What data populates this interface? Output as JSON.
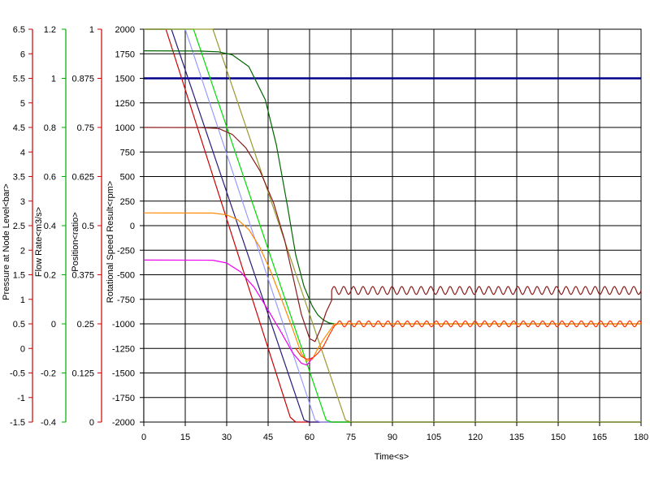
{
  "chart_data": {
    "type": "line",
    "xlabel": "Time<s>",
    "xlim": [
      0,
      180
    ],
    "x_ticks": [
      "0",
      "15",
      "30",
      "45",
      "60",
      "75",
      "90",
      "105",
      "120",
      "135",
      "150",
      "165",
      "180"
    ],
    "grid": true,
    "axes": [
      {
        "id": "pressure",
        "label": "Pressure at Node Level<bar>",
        "color": "#cc0000",
        "ylim": [
          -1.5,
          6.5
        ],
        "ticks": [
          "6.5",
          "6",
          "5.5",
          "5",
          "4.5",
          "4",
          "3.5",
          "3",
          "2.5",
          "2",
          "1.5",
          "1",
          "0.5",
          "0",
          "-0.5",
          "-1",
          "-1.5"
        ]
      },
      {
        "id": "flow",
        "label": "Flow Rate<m3/s>",
        "color": "#00aa00",
        "ylim": [
          -0.4,
          1.2
        ],
        "ticks": [
          "1.2",
          "1",
          "0.8",
          "0.6",
          "0.4",
          "0.2",
          "0",
          "-0.2",
          "-0.4"
        ]
      },
      {
        "id": "position",
        "label": "Position<ratio>",
        "color": "#cc0000",
        "ylim": [
          0,
          1
        ],
        "ticks": [
          "1",
          "0.875",
          "0.75",
          "0.625",
          "0.5",
          "0.375",
          "0.25",
          "0.125",
          "0"
        ]
      },
      {
        "id": "speed",
        "label": "Rotational Speed Result<rpm>",
        "color": "#000000",
        "ylim": [
          -2000,
          2000
        ],
        "ticks": [
          "2000",
          "1750",
          "1500",
          "1250",
          "1000",
          "750",
          "500",
          "250",
          "0",
          "-250",
          "-500",
          "-750",
          "-1000",
          "-1250",
          "-1500",
          "-1750",
          "-2000"
        ]
      }
    ],
    "series": [
      {
        "color": "#00008b",
        "width": 2.5,
        "points": [
          [
            0,
            1500
          ],
          [
            180,
            1500
          ]
        ]
      },
      {
        "color": "#cc0000",
        "width": 1.2,
        "points": [
          [
            0,
            2000
          ],
          [
            8,
            2000
          ],
          [
            53,
            -1950
          ],
          [
            55,
            -2000
          ],
          [
            180,
            -2000
          ]
        ]
      },
      {
        "color": "#2a1a7a",
        "width": 1.2,
        "points": [
          [
            0,
            2000
          ],
          [
            10,
            2000
          ],
          [
            58,
            -1980
          ],
          [
            60,
            -2000
          ],
          [
            180,
            -2000
          ]
        ]
      },
      {
        "color": "#9999ff",
        "width": 1.2,
        "points": [
          [
            0,
            2000
          ],
          [
            15,
            2000
          ],
          [
            62,
            -1980
          ],
          [
            64,
            -2000
          ],
          [
            180,
            -2000
          ]
        ]
      },
      {
        "color": "#00dd00",
        "width": 1.2,
        "points": [
          [
            0,
            2000
          ],
          [
            18,
            2000
          ],
          [
            66,
            -1980
          ],
          [
            68,
            -2000
          ],
          [
            180,
            -2000
          ]
        ]
      },
      {
        "color": "#999933",
        "width": 1.2,
        "points": [
          [
            0,
            2000
          ],
          [
            25,
            2000
          ],
          [
            73,
            -1980
          ],
          [
            75,
            -2000
          ],
          [
            180,
            -2000
          ]
        ]
      },
      {
        "color": "#006600",
        "width": 1.2,
        "points": [
          [
            0,
            1780
          ],
          [
            20,
            1778
          ],
          [
            27,
            1770
          ],
          [
            32,
            1740
          ],
          [
            38,
            1620
          ],
          [
            44,
            1280
          ],
          [
            48,
            820
          ],
          [
            52,
            200
          ],
          [
            55,
            -300
          ],
          [
            58,
            -620
          ],
          [
            61,
            -820
          ],
          [
            63,
            -910
          ],
          [
            65,
            -960
          ],
          [
            67,
            -990
          ],
          [
            69,
            -1000
          ],
          [
            180,
            -1000
          ]
        ]
      },
      {
        "color": "#8b1a1a",
        "width": 1.2,
        "points": [
          [
            0,
            1000
          ],
          [
            20,
            998
          ],
          [
            27,
            990
          ],
          [
            32,
            930
          ],
          [
            37,
            790
          ],
          [
            42,
            560
          ],
          [
            47,
            230
          ],
          [
            51,
            -150
          ],
          [
            54,
            -520
          ],
          [
            57,
            -900
          ],
          [
            60,
            -1150
          ],
          [
            62,
            -1180
          ],
          [
            64,
            -1050
          ],
          [
            66,
            -880
          ],
          [
            68,
            -760
          ],
          [
            69,
            -660
          ],
          [
            180,
            -660
          ]
        ],
        "oscillation": {
          "from": 68,
          "amplitude": 40,
          "period": 3.5
        }
      },
      {
        "color": "#ff8800",
        "width": 1.2,
        "points": [
          [
            0,
            130
          ],
          [
            25,
            128
          ],
          [
            30,
            110
          ],
          [
            34,
            60
          ],
          [
            38,
            -40
          ],
          [
            42,
            -220
          ],
          [
            46,
            -470
          ],
          [
            50,
            -760
          ],
          [
            54,
            -1060
          ],
          [
            57,
            -1300
          ],
          [
            59,
            -1380
          ],
          [
            61,
            -1360
          ],
          [
            63,
            -1250
          ],
          [
            65,
            -1160
          ],
          [
            67,
            -1080
          ],
          [
            69,
            -1000
          ],
          [
            180,
            -1000
          ]
        ]
      },
      {
        "color": "#ee00ee",
        "width": 1.2,
        "points": [
          [
            0,
            -350
          ],
          [
            25,
            -352
          ],
          [
            30,
            -380
          ],
          [
            35,
            -470
          ],
          [
            40,
            -630
          ],
          [
            45,
            -860
          ],
          [
            50,
            -1100
          ],
          [
            54,
            -1300
          ],
          [
            57,
            -1400
          ],
          [
            59,
            -1420
          ],
          [
            60,
            -1390
          ],
          [
            61,
            -1340
          ]
        ]
      },
      {
        "color": "#ff3300",
        "width": 1.2,
        "points": [
          [
            55,
            -1250
          ],
          [
            57,
            -1330
          ],
          [
            59,
            -1360
          ],
          [
            61,
            -1350
          ],
          [
            63,
            -1300
          ],
          [
            65,
            -1230
          ],
          [
            67,
            -1120
          ],
          [
            69,
            -1020
          ],
          [
            70,
            -1000
          ],
          [
            180,
            -1000
          ]
        ],
        "oscillation": {
          "from": 70,
          "amplitude": 30,
          "period": 3.5
        }
      }
    ]
  }
}
